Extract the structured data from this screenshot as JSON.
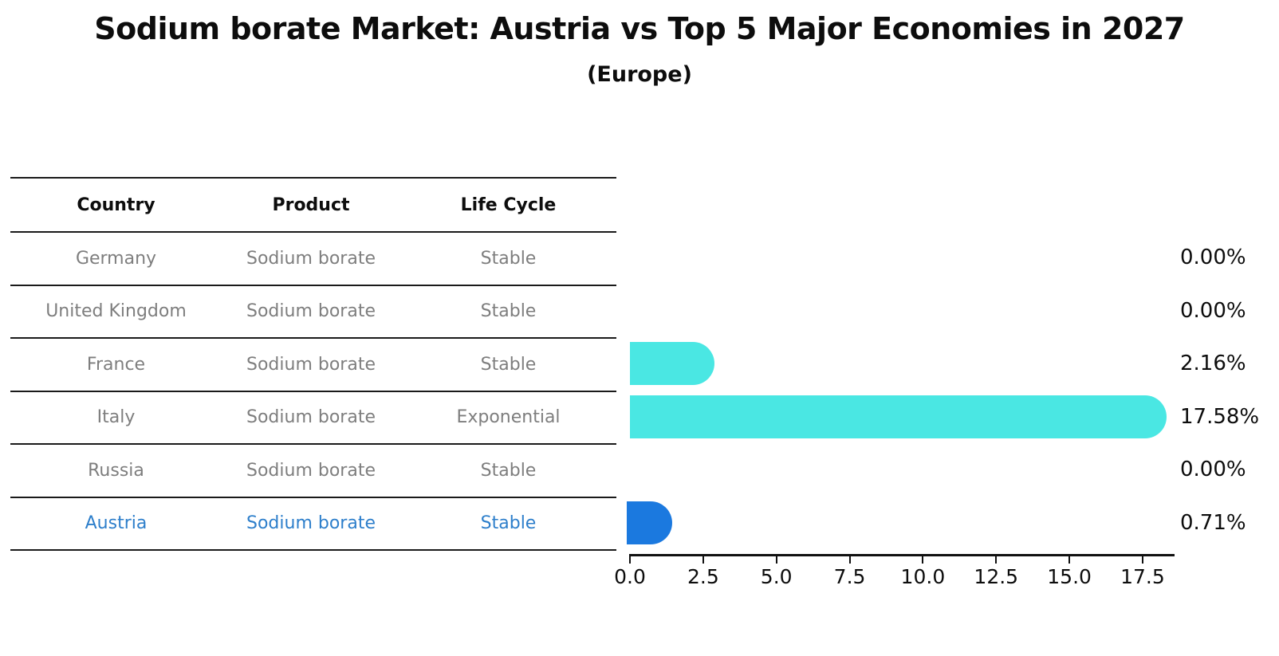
{
  "title": "Sodium borate Market: Austria vs Top 5 Major Economies in 2027",
  "subtitle": "(Europe)",
  "table": {
    "headers": {
      "country": "Country",
      "product": "Product",
      "life_cycle": "Life Cycle"
    },
    "rows": [
      {
        "country": "Germany",
        "product": "Sodium borate",
        "life_cycle": "Stable",
        "highlight": false
      },
      {
        "country": "United Kingdom",
        "product": "Sodium borate",
        "life_cycle": "Stable",
        "highlight": false
      },
      {
        "country": "France",
        "product": "Sodium borate",
        "life_cycle": "Stable",
        "highlight": false
      },
      {
        "country": "Italy",
        "product": "Sodium borate",
        "life_cycle": "Exponential",
        "highlight": false
      },
      {
        "country": "Russia",
        "product": "Sodium borate",
        "life_cycle": "Stable",
        "highlight": false
      },
      {
        "country": "Austria",
        "product": "Sodium borate",
        "life_cycle": "Stable",
        "highlight": true
      }
    ]
  },
  "chart_data": {
    "type": "bar",
    "orientation": "horizontal",
    "title": "Sodium borate Market: Austria vs Top 5 Major Economies in 2027",
    "subtitle": "(Europe)",
    "categories": [
      "Germany",
      "United Kingdom",
      "France",
      "Italy",
      "Russia",
      "Austria"
    ],
    "values": [
      0.0,
      0.0,
      2.16,
      17.58,
      0.0,
      0.71
    ],
    "value_labels": [
      "0.00%",
      "0.00%",
      "2.16%",
      "17.58%",
      "0.00%",
      "0.71%"
    ],
    "xlabel": "",
    "ylabel": "",
    "xlim": [
      0,
      18.5
    ],
    "xticks": [
      0.0,
      2.5,
      5.0,
      7.5,
      10.0,
      12.5,
      15.0,
      17.5
    ],
    "xtick_labels": [
      "0.0",
      "2.5",
      "5.0",
      "7.5",
      "10.0",
      "12.5",
      "15.0",
      "17.5"
    ],
    "grid": false,
    "legend": "none",
    "highlight_index": 5
  },
  "colors": {
    "bar_default": "#4ae7e3",
    "bar_highlight": "#1b79df",
    "row_text": "#7e7e7e",
    "highlight_text": "#2e7fcb",
    "axis": "#111111"
  }
}
